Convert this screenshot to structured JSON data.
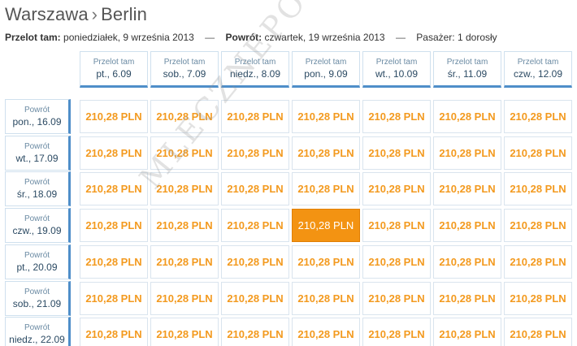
{
  "header": {
    "origin": "Warszawa",
    "separator": "›",
    "destination": "Berlin"
  },
  "summary": {
    "outbound_label": "Przelot tam:",
    "outbound_value": "poniedziałek, 9 września 2013",
    "dash": "—",
    "return_label": "Powrót:",
    "return_value": "czwartek, 19 września 2013",
    "passengers_label": "Pasażer:",
    "passengers_value": "1 dorosły"
  },
  "columns": [
    {
      "label": "Przelot tam",
      "date": "pt., 6.09"
    },
    {
      "label": "Przelot tam",
      "date": "sob., 7.09"
    },
    {
      "label": "Przelot tam",
      "date": "niedz., 8.09"
    },
    {
      "label": "Przelot tam",
      "date": "pon., 9.09"
    },
    {
      "label": "Przelot tam",
      "date": "wt., 10.09"
    },
    {
      "label": "Przelot tam",
      "date": "śr., 11.09"
    },
    {
      "label": "Przelot tam",
      "date": "czw., 12.09"
    }
  ],
  "rows": [
    {
      "label": "Powrót",
      "date": "pon., 16.09",
      "prices": [
        "210,28 PLN",
        "210,28 PLN",
        "210,28 PLN",
        "210,28 PLN",
        "210,28 PLN",
        "210,28 PLN",
        "210,28 PLN"
      ]
    },
    {
      "label": "Powrót",
      "date": "wt., 17.09",
      "prices": [
        "210,28 PLN",
        "210,28 PLN",
        "210,28 PLN",
        "210,28 PLN",
        "210,28 PLN",
        "210,28 PLN",
        "210,28 PLN"
      ]
    },
    {
      "label": "Powrót",
      "date": "śr., 18.09",
      "prices": [
        "210,28 PLN",
        "210,28 PLN",
        "210,28 PLN",
        "210,28 PLN",
        "210,28 PLN",
        "210,28 PLN",
        "210,28 PLN"
      ]
    },
    {
      "label": "Powrót",
      "date": "czw., 19.09",
      "prices": [
        "210,28 PLN",
        "210,28 PLN",
        "210,28 PLN",
        "210,28 PLN",
        "210,28 PLN",
        "210,28 PLN",
        "210,28 PLN"
      ]
    },
    {
      "label": "Powrót",
      "date": "pt., 20.09",
      "prices": [
        "210,28 PLN",
        "210,28 PLN",
        "210,28 PLN",
        "210,28 PLN",
        "210,28 PLN",
        "210,28 PLN",
        "210,28 PLN"
      ]
    },
    {
      "label": "Powrót",
      "date": "sob., 21.09",
      "prices": [
        "210,28 PLN",
        "210,28 PLN",
        "210,28 PLN",
        "210,28 PLN",
        "210,28 PLN",
        "210,28 PLN",
        "210,28 PLN"
      ]
    },
    {
      "label": "Powrót",
      "date": "niedz., 22.09",
      "prices": [
        "210,28 PLN",
        "210,28 PLN",
        "210,28 PLN",
        "210,28 PLN",
        "210,28 PLN",
        "210,28 PLN",
        "210,28 PLN"
      ]
    }
  ],
  "selected": {
    "row": 3,
    "col": 3
  },
  "watermark": "MLECZNEPODROZE.PL",
  "colors": {
    "price": "#f39a1f",
    "selected_bg": "#f39312",
    "accent_border": "#4f8ec9"
  }
}
